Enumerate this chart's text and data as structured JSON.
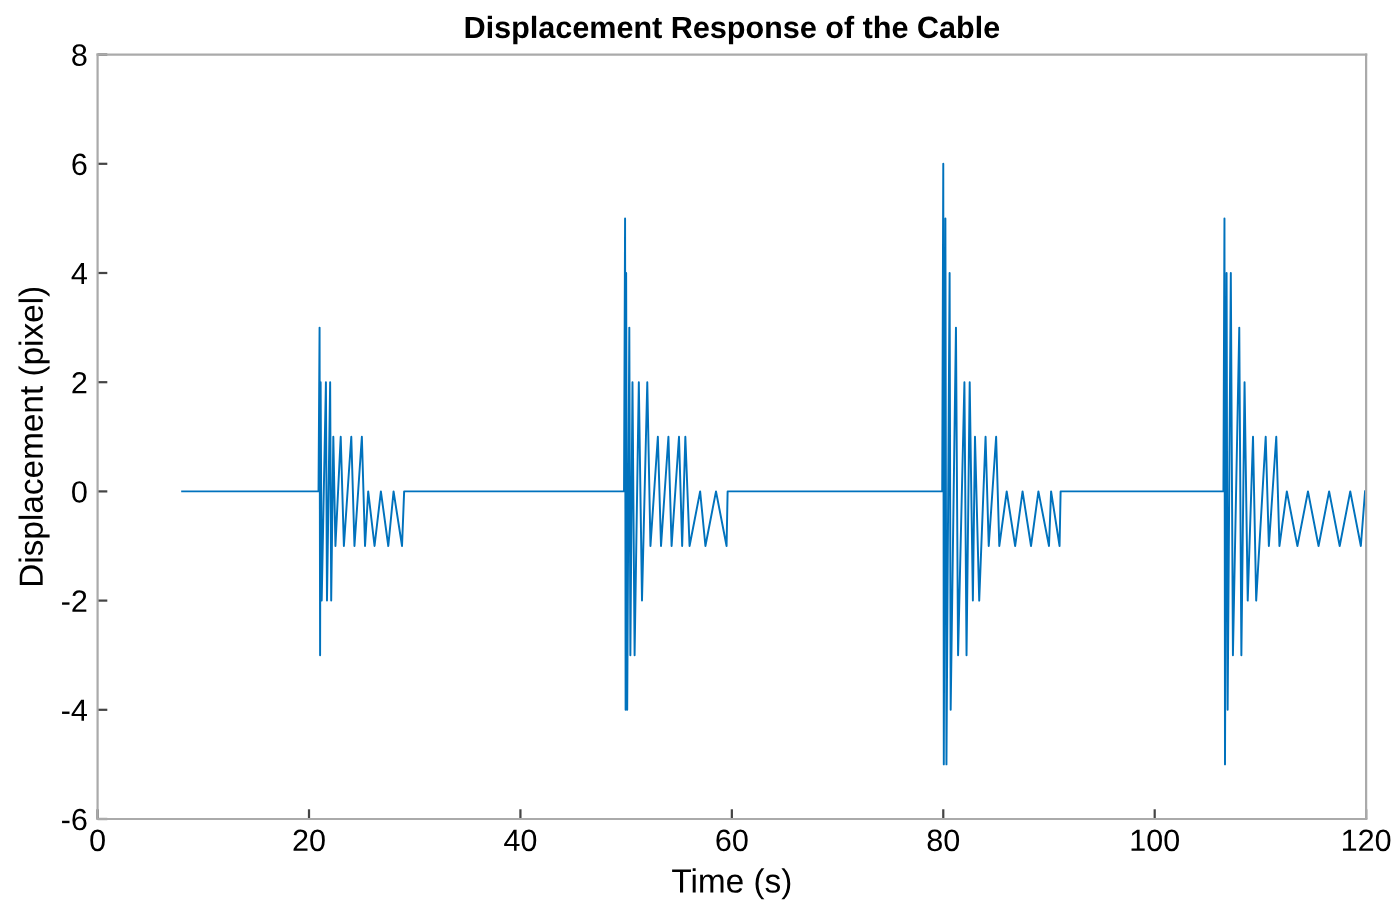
{
  "chart_data": {
    "type": "line",
    "title": "Displacement Response of the Cable",
    "xlabel": "Time (s)",
    "ylabel": "Displacement (pixel)",
    "xlim": [
      0,
      120
    ],
    "xticks": [
      0,
      20,
      40,
      60,
      80,
      100,
      120
    ],
    "ylim": [
      -6,
      8
    ],
    "yticks": [
      -6,
      -4,
      -2,
      0,
      2,
      4,
      6,
      8
    ],
    "grid": false,
    "legend": false,
    "marker": "none",
    "line_style": "solid",
    "series": [
      {
        "color": "#0072bd",
        "x": [
          8,
          20.9,
          21.0,
          21.05,
          21.1,
          21.2,
          21.6,
          21.7,
          22.0,
          22.1,
          22.3,
          22.5,
          23.0,
          23.3,
          24.0,
          24.3,
          25.0,
          25.3,
          25.6,
          26.2,
          26.8,
          27.5,
          28.0,
          28.8,
          29.0,
          49.8,
          49.9,
          49.95,
          50.0,
          50.1,
          50.3,
          50.4,
          50.6,
          50.8,
          51.2,
          51.5,
          52.0,
          52.3,
          53.0,
          53.3,
          54.0,
          54.3,
          55.0,
          55.3,
          55.6,
          56.0,
          57.0,
          57.5,
          58.5,
          59.5,
          59.6,
          79.9,
          80.0,
          80.05,
          80.2,
          80.3,
          80.6,
          80.7,
          81.2,
          81.4,
          82.0,
          82.2,
          82.5,
          82.8,
          83.0,
          83.4,
          84.0,
          84.3,
          85.0,
          85.3,
          86.0,
          86.8,
          87.5,
          88.3,
          89.0,
          90.0,
          90.2,
          91.0,
          91.1,
          106.5,
          106.6,
          106.65,
          106.8,
          106.9,
          107.2,
          107.4,
          108.0,
          108.2,
          108.5,
          108.8,
          109.3,
          109.6,
          110.5,
          110.8,
          111.5,
          111.8,
          112.5,
          113.5,
          114.5,
          115.5,
          116.5,
          117.5,
          118.5,
          119.5,
          119.9
        ],
        "values": [
          0,
          0,
          3,
          -3,
          2,
          -2,
          2,
          -2,
          2,
          -2,
          1,
          -1,
          1,
          -1,
          1,
          -1,
          1,
          -1,
          0,
          -1,
          0,
          -1,
          0,
          -1,
          0,
          0,
          5,
          -4,
          4,
          -4,
          3,
          -3,
          2,
          -3,
          2,
          -2,
          2,
          -1,
          1,
          -1,
          1,
          -1,
          1,
          -1,
          1,
          -1,
          0,
          -1,
          0,
          -1,
          0,
          0,
          6,
          -5,
          5,
          -5,
          4,
          -4,
          3,
          -3,
          2,
          -3,
          2,
          -2,
          1,
          -2,
          1,
          -1,
          1,
          -1,
          0,
          -1,
          0,
          -1,
          0,
          -1,
          0,
          -1,
          0,
          0,
          5,
          -5,
          4,
          -4,
          4,
          -3,
          3,
          -3,
          2,
          -2,
          1,
          -2,
          1,
          -1,
          1,
          -1,
          0,
          -1,
          0,
          -1,
          0,
          -1,
          0,
          -1,
          0
        ]
      }
    ]
  }
}
